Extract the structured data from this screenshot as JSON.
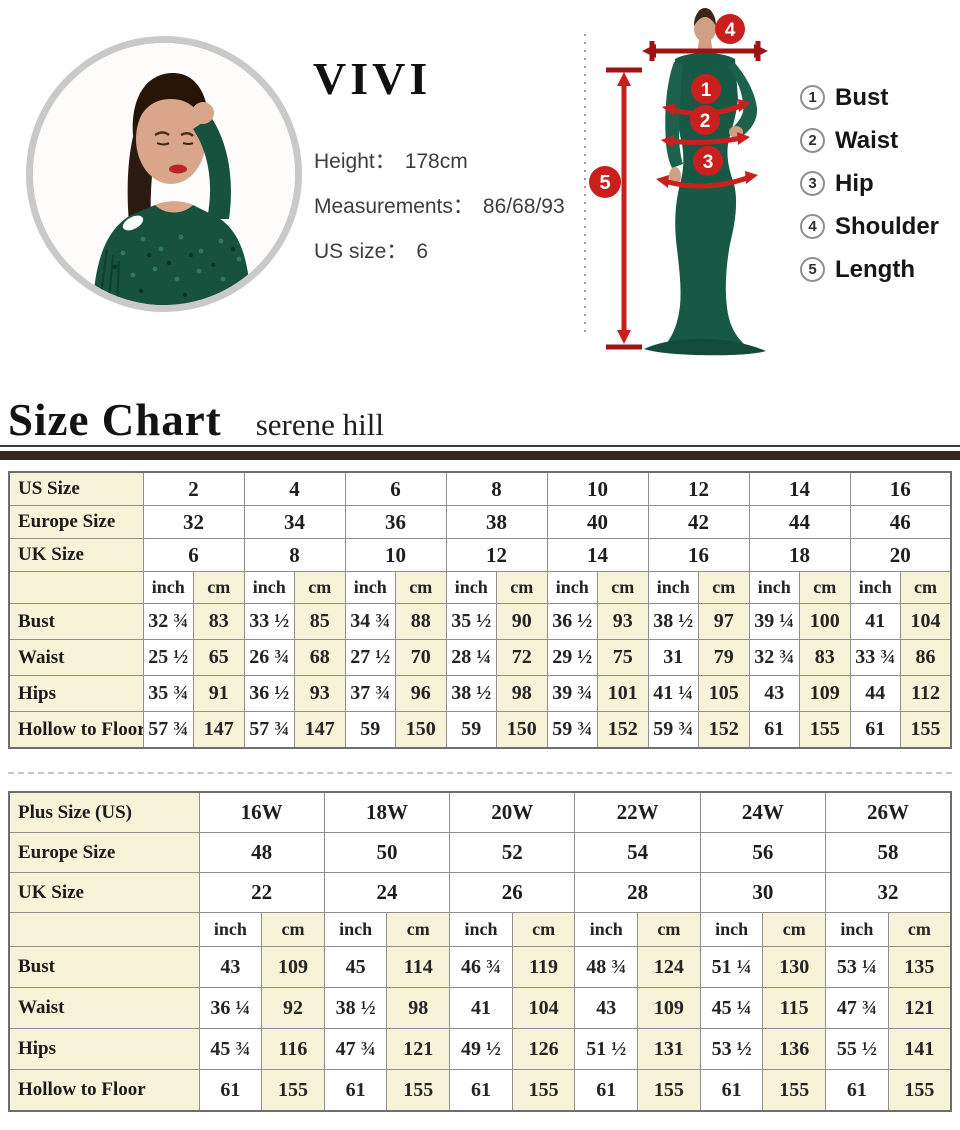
{
  "hero": {
    "brand": "VIVI",
    "info": [
      {
        "label": "Height：",
        "value": "178cm"
      },
      {
        "label": "Measurements：",
        "value": "86/68/93"
      },
      {
        "label": "US size：",
        "value": "6"
      }
    ],
    "legend": [
      {
        "num": "1",
        "label": "Bust"
      },
      {
        "num": "2",
        "label": "Waist"
      },
      {
        "num": "3",
        "label": "Hip"
      },
      {
        "num": "4",
        "label": "Shoulder"
      },
      {
        "num": "5",
        "label": "Length"
      }
    ],
    "diagram_markers": {
      "bust": "1",
      "waist": "2",
      "hip": "3",
      "shoulder": "4",
      "length": "5"
    }
  },
  "section": {
    "title": "Size Chart",
    "subtitle": "serene hill"
  },
  "tables": [
    {
      "size_rows": [
        {
          "label": "US Size",
          "values": [
            "2",
            "4",
            "6",
            "8",
            "10",
            "12",
            "14",
            "16"
          ]
        },
        {
          "label": "Europe Size",
          "values": [
            "32",
            "34",
            "36",
            "38",
            "40",
            "42",
            "44",
            "46"
          ]
        },
        {
          "label": "UK Size",
          "values": [
            "6",
            "8",
            "10",
            "12",
            "14",
            "16",
            "18",
            "20"
          ]
        }
      ],
      "units": [
        "inch",
        "cm"
      ],
      "data_rows": [
        {
          "label": "Bust",
          "values": [
            "32 ¾",
            "83",
            "33 ½",
            "85",
            "34 ¾",
            "88",
            "35 ½",
            "90",
            "36 ½",
            "93",
            "38 ½",
            "97",
            "39 ¼",
            "100",
            "41",
            "104"
          ]
        },
        {
          "label": "Waist",
          "values": [
            "25 ½",
            "65",
            "26 ¾",
            "68",
            "27 ½",
            "70",
            "28 ¼",
            "72",
            "29 ½",
            "75",
            "31",
            "79",
            "32 ¾",
            "83",
            "33 ¾",
            "86"
          ]
        },
        {
          "label": "Hips",
          "values": [
            "35 ¾",
            "91",
            "36 ½",
            "93",
            "37 ¾",
            "96",
            "38 ½",
            "98",
            "39 ¾",
            "101",
            "41 ¼",
            "105",
            "43",
            "109",
            "44",
            "112"
          ]
        },
        {
          "label": "Hollow to Floor",
          "values": [
            "57 ¾",
            "147",
            "57 ¾",
            "147",
            "59",
            "150",
            "59",
            "150",
            "59 ¾",
            "152",
            "59 ¾",
            "152",
            "61",
            "155",
            "61",
            "155"
          ]
        }
      ]
    },
    {
      "size_rows": [
        {
          "label": "Plus Size (US)",
          "values": [
            "16W",
            "18W",
            "20W",
            "22W",
            "24W",
            "26W"
          ]
        },
        {
          "label": "Europe Size",
          "values": [
            "48",
            "50",
            "52",
            "54",
            "56",
            "58"
          ]
        },
        {
          "label": "UK Size",
          "values": [
            "22",
            "24",
            "26",
            "28",
            "30",
            "32"
          ]
        }
      ],
      "units": [
        "inch",
        "cm"
      ],
      "data_rows": [
        {
          "label": "Bust",
          "values": [
            "43",
            "109",
            "45",
            "114",
            "46 ¾",
            "119",
            "48 ¾",
            "124",
            "51 ¼",
            "130",
            "53 ¼",
            "135"
          ]
        },
        {
          "label": "Waist",
          "values": [
            "36 ¼",
            "92",
            "38 ½",
            "98",
            "41",
            "104",
            "43",
            "109",
            "45 ¼",
            "115",
            "47 ¾",
            "121"
          ]
        },
        {
          "label": "Hips",
          "values": [
            "45 ¾",
            "116",
            "47 ¾",
            "121",
            "49 ½",
            "126",
            "51 ½",
            "131",
            "53 ½",
            "136",
            "55 ½",
            "141"
          ]
        },
        {
          "label": "Hollow to Floor",
          "values": [
            "61",
            "155",
            "61",
            "155",
            "61",
            "155",
            "61",
            "155",
            "61",
            "155",
            "61",
            "155"
          ]
        }
      ]
    }
  ],
  "colors": {
    "accent_red": "#c9201d",
    "dark_red": "#9e1414",
    "table_cream": "#f6f3d8",
    "table_border": "#8f8f8f",
    "rule_brown": "#35271f",
    "dress_green": "#175944"
  }
}
